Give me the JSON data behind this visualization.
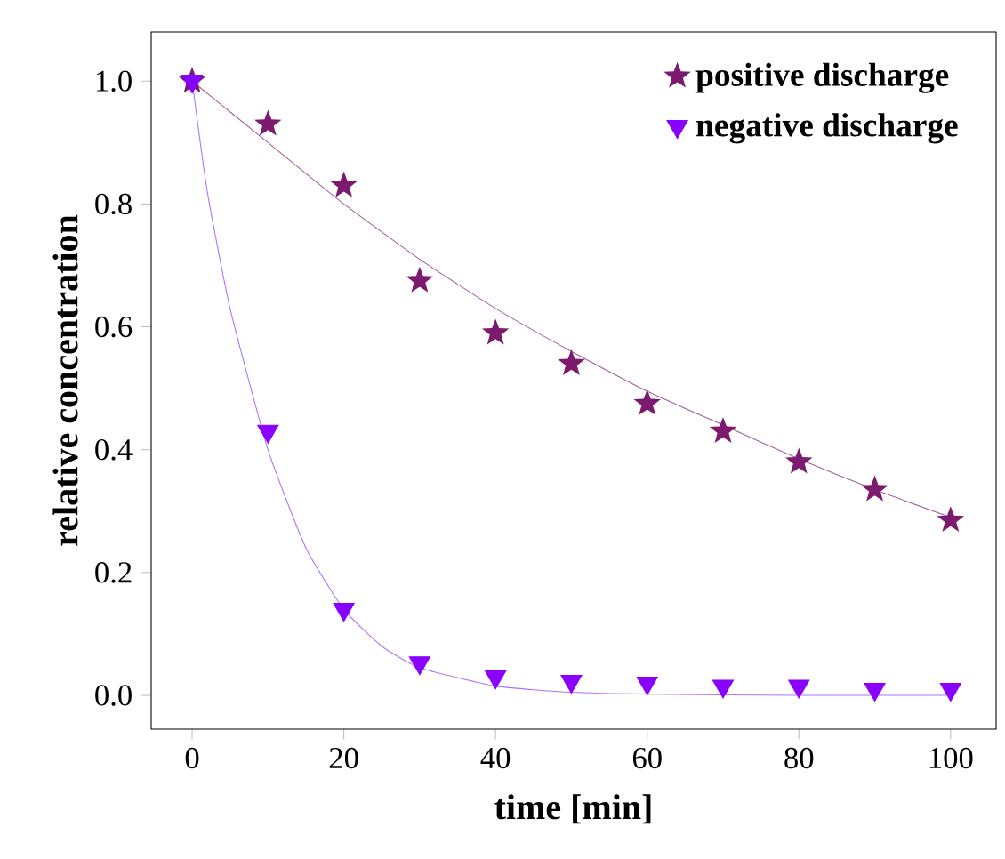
{
  "chart_data": {
    "type": "scatter",
    "xlabel": "time [min]",
    "ylabel": "relative concentration",
    "x": [
      0,
      10,
      20,
      30,
      40,
      50,
      60,
      70,
      80,
      90,
      100
    ],
    "series": [
      {
        "name": "positive discharge",
        "color": "#7b1a6e",
        "marker": "star",
        "values": [
          1.0,
          0.93,
          0.83,
          0.675,
          0.59,
          0.54,
          0.475,
          0.43,
          0.38,
          0.335,
          0.285
        ]
      },
      {
        "name": "negative discharge",
        "color": "#8a00ff",
        "marker": "triangle",
        "values": [
          1.0,
          0.43,
          0.14,
          0.053,
          0.03,
          0.023,
          0.02,
          0.015,
          0.015,
          0.01,
          0.01
        ]
      },
      {
        "type": "line",
        "color": "#a0609a",
        "marker": "none",
        "x": [
          0,
          10,
          20,
          30,
          40,
          50,
          60,
          70,
          80,
          90,
          100
        ],
        "values": [
          1.0,
          0.9,
          0.8,
          0.71,
          0.63,
          0.56,
          0.495,
          0.44,
          0.385,
          0.335,
          0.29
        ]
      },
      {
        "type": "line",
        "color": "#b070ff",
        "marker": "none",
        "x": [
          0,
          2,
          5,
          10,
          15,
          20,
          25,
          30,
          40,
          50,
          60,
          80,
          100
        ],
        "values": [
          1.0,
          0.82,
          0.63,
          0.4,
          0.24,
          0.14,
          0.08,
          0.045,
          0.015,
          0.005,
          0.002,
          0.0,
          0.0
        ]
      }
    ],
    "xlim": [
      -5.4,
      106
    ],
    "ylim": [
      -0.055,
      1.08
    ],
    "xticks": [
      0,
      20,
      40,
      60,
      80,
      100
    ],
    "yticks": [
      {
        "value": 0,
        "label": "0.0"
      },
      {
        "value": 0.2,
        "label": "0.2"
      },
      {
        "value": 0.4,
        "label": "0.4"
      },
      {
        "value": 0.6,
        "label": "0.6"
      },
      {
        "value": 0.8,
        "label": "0.8"
      },
      {
        "value": 1.0,
        "label": "1.0"
      }
    ],
    "grid": false,
    "legend": "top right"
  }
}
